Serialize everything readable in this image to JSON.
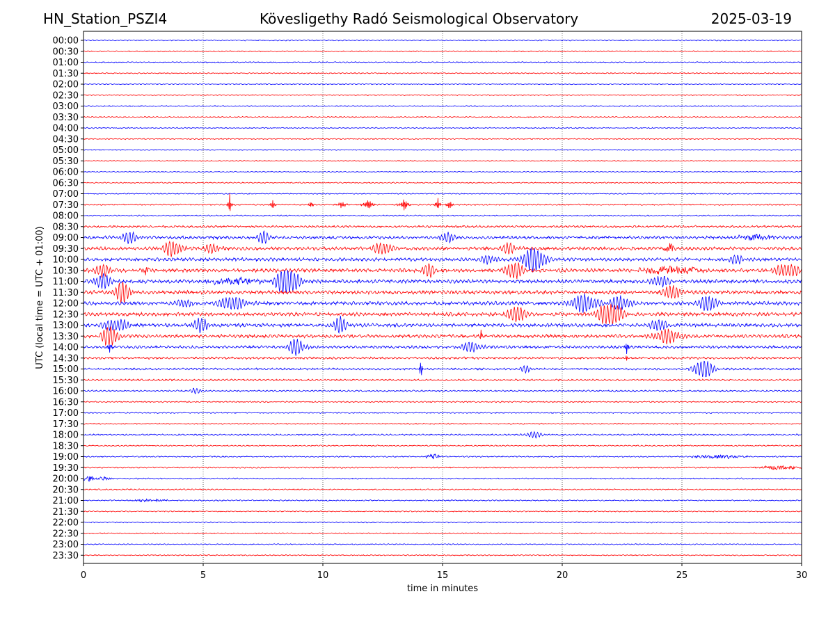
{
  "header": {
    "station": "HN_Station_PSZI4",
    "title": "Kövesligethy Radó Seismological Observatory",
    "date": "2025-03-19"
  },
  "chart_data": {
    "type": "line",
    "title": "Kövesligethy Radó Seismological Observatory",
    "xlabel": "time in minutes",
    "ylabel": "UTC (local time = UTC + 01:00)",
    "xlim": [
      0,
      30
    ],
    "xticks": [
      0,
      5,
      10,
      15,
      20,
      25,
      30
    ],
    "grid": "vertical dotted lines at each x tick",
    "row_labels": [
      "00:00",
      "00:30",
      "01:00",
      "01:30",
      "02:00",
      "02:30",
      "03:00",
      "03:30",
      "04:00",
      "04:30",
      "05:00",
      "05:30",
      "06:00",
      "06:30",
      "07:00",
      "07:30",
      "08:00",
      "08:30",
      "09:00",
      "09:30",
      "10:00",
      "10:30",
      "11:00",
      "11:30",
      "12:00",
      "12:30",
      "13:00",
      "13:30",
      "14:00",
      "14:30",
      "15:00",
      "15:30",
      "16:00",
      "16:30",
      "17:00",
      "17:30",
      "18:00",
      "18:30",
      "19:00",
      "19:30",
      "20:00",
      "20:30",
      "21:00",
      "21:30",
      "22:00",
      "22:30",
      "23:00",
      "23:30"
    ],
    "series_colors": [
      "#0000ff",
      "#ff0000"
    ],
    "color_rule": "alternating blue / red traces starting with blue at 00:00",
    "noise_level": [
      0.8,
      0.8,
      0.8,
      0.8,
      0.7,
      0.7,
      0.8,
      0.8,
      0.8,
      0.8,
      0.7,
      0.7,
      0.7,
      0.8,
      0.8,
      1.0,
      0.9,
      1.6,
      2.2,
      2.3,
      2.4,
      2.6,
      2.6,
      2.6,
      2.6,
      2.6,
      2.5,
      2.4,
      2.0,
      1.6,
      1.4,
      1.3,
      1.1,
      1.0,
      0.9,
      0.9,
      1.1,
      0.9,
      0.9,
      0.9,
      0.9,
      0.9,
      0.9,
      0.8,
      0.8,
      0.8,
      0.8,
      0.8
    ],
    "events": [
      {
        "row": 15,
        "t": 6.1,
        "amp": 22,
        "width": 0.18,
        "kind": "spike"
      },
      {
        "row": 15,
        "t": 7.9,
        "amp": 9,
        "width": 0.25,
        "kind": "spike"
      },
      {
        "row": 15,
        "t": 9.5,
        "amp": 7,
        "width": 0.3,
        "kind": "spike"
      },
      {
        "row": 15,
        "t": 10.8,
        "amp": 8,
        "width": 0.4,
        "kind": "spike"
      },
      {
        "row": 15,
        "t": 11.9,
        "amp": 10,
        "width": 0.5,
        "kind": "spike"
      },
      {
        "row": 15,
        "t": 13.4,
        "amp": 11,
        "width": 0.5,
        "kind": "spike"
      },
      {
        "row": 15,
        "t": 14.8,
        "amp": 12,
        "width": 0.3,
        "kind": "spike"
      },
      {
        "row": 15,
        "t": 15.3,
        "amp": 10,
        "width": 0.3,
        "kind": "spike"
      },
      {
        "row": 18,
        "t": 1.9,
        "amp": 7,
        "width": 0.6,
        "kind": "wave"
      },
      {
        "row": 18,
        "t": 7.5,
        "amp": 8,
        "width": 0.4,
        "kind": "wave"
      },
      {
        "row": 18,
        "t": 15.2,
        "amp": 7,
        "width": 0.4,
        "kind": "wave"
      },
      {
        "row": 18,
        "t": 28.0,
        "amp": 4,
        "width": 0.9,
        "kind": "burst"
      },
      {
        "row": 19,
        "t": 3.7,
        "amp": 10,
        "width": 0.6,
        "kind": "wave"
      },
      {
        "row": 19,
        "t": 5.4,
        "amp": 6,
        "width": 0.5,
        "kind": "wave"
      },
      {
        "row": 19,
        "t": 12.5,
        "amp": 8,
        "width": 0.6,
        "kind": "wave"
      },
      {
        "row": 19,
        "t": 17.8,
        "amp": 7,
        "width": 0.5,
        "kind": "wave"
      },
      {
        "row": 19,
        "t": 24.5,
        "amp": 8,
        "width": 0.25,
        "kind": "burst"
      },
      {
        "row": 20,
        "t": 18.8,
        "amp": 16,
        "width": 0.7,
        "kind": "wave"
      },
      {
        "row": 20,
        "t": 16.9,
        "amp": 6,
        "width": 0.5,
        "kind": "wave"
      },
      {
        "row": 20,
        "t": 27.3,
        "amp": 5,
        "width": 0.6,
        "kind": "wave"
      },
      {
        "row": 21,
        "t": 0.8,
        "amp": 8,
        "width": 0.6,
        "kind": "wave"
      },
      {
        "row": 21,
        "t": 2.6,
        "amp": 5,
        "width": 0.3,
        "kind": "burst"
      },
      {
        "row": 21,
        "t": 14.4,
        "amp": 9,
        "width": 0.4,
        "kind": "wave"
      },
      {
        "row": 21,
        "t": 18.0,
        "amp": 12,
        "width": 0.5,
        "kind": "wave"
      },
      {
        "row": 21,
        "t": 24.5,
        "amp": 7,
        "width": 1.4,
        "kind": "burst"
      },
      {
        "row": 21,
        "t": 29.4,
        "amp": 8,
        "width": 0.8,
        "kind": "wave"
      },
      {
        "row": 22,
        "t": 0.8,
        "amp": 10,
        "width": 0.5,
        "kind": "wave"
      },
      {
        "row": 22,
        "t": 6.3,
        "amp": 5,
        "width": 1.4,
        "kind": "burst"
      },
      {
        "row": 22,
        "t": 8.5,
        "amp": 18,
        "width": 0.7,
        "kind": "wave"
      },
      {
        "row": 22,
        "t": 24.1,
        "amp": 8,
        "width": 0.5,
        "kind": "wave"
      },
      {
        "row": 23,
        "t": 1.6,
        "amp": 14,
        "width": 0.5,
        "kind": "wave"
      },
      {
        "row": 23,
        "t": 24.6,
        "amp": 10,
        "width": 0.5,
        "kind": "wave"
      },
      {
        "row": 24,
        "t": 6.2,
        "amp": 9,
        "width": 0.8,
        "kind": "wave"
      },
      {
        "row": 24,
        "t": 4.2,
        "amp": 6,
        "width": 0.4,
        "kind": "wave"
      },
      {
        "row": 24,
        "t": 20.9,
        "amp": 12,
        "width": 0.8,
        "kind": "wave"
      },
      {
        "row": 24,
        "t": 22.4,
        "amp": 10,
        "width": 0.6,
        "kind": "wave"
      },
      {
        "row": 24,
        "t": 26.1,
        "amp": 12,
        "width": 0.5,
        "kind": "wave"
      },
      {
        "row": 25,
        "t": 18.1,
        "amp": 12,
        "width": 0.5,
        "kind": "wave"
      },
      {
        "row": 25,
        "t": 22.0,
        "amp": 15,
        "width": 0.8,
        "kind": "wave"
      },
      {
        "row": 26,
        "t": 1.4,
        "amp": 8,
        "width": 0.8,
        "kind": "wave"
      },
      {
        "row": 26,
        "t": 4.9,
        "amp": 9,
        "width": 0.5,
        "kind": "wave"
      },
      {
        "row": 26,
        "t": 10.7,
        "amp": 11,
        "width": 0.4,
        "kind": "wave"
      },
      {
        "row": 26,
        "t": 24.0,
        "amp": 8,
        "width": 0.5,
        "kind": "wave"
      },
      {
        "row": 27,
        "t": 1.1,
        "amp": 14,
        "width": 0.5,
        "kind": "wave"
      },
      {
        "row": 27,
        "t": 16.6,
        "amp": 12,
        "width": 0.15,
        "kind": "spike"
      },
      {
        "row": 27,
        "t": 24.4,
        "amp": 9,
        "width": 0.8,
        "kind": "wave"
      },
      {
        "row": 28,
        "t": 1.1,
        "amp": 8,
        "width": 0.3,
        "kind": "spike"
      },
      {
        "row": 28,
        "t": 8.9,
        "amp": 11,
        "width": 0.5,
        "kind": "wave"
      },
      {
        "row": 28,
        "t": 16.2,
        "amp": 7,
        "width": 0.6,
        "kind": "wave"
      },
      {
        "row": 28,
        "t": 22.7,
        "amp": 14,
        "width": 0.2,
        "kind": "spike"
      },
      {
        "row": 29,
        "t": 22.7,
        "amp": 8,
        "width": 0.2,
        "kind": "spike"
      },
      {
        "row": 30,
        "t": 14.1,
        "amp": 30,
        "width": 0.12,
        "kind": "spike"
      },
      {
        "row": 30,
        "t": 25.9,
        "amp": 12,
        "width": 0.6,
        "kind": "wave"
      },
      {
        "row": 30,
        "t": 18.5,
        "amp": 5,
        "width": 0.3,
        "kind": "wave"
      },
      {
        "row": 32,
        "t": 4.7,
        "amp": 4,
        "width": 0.3,
        "kind": "wave"
      },
      {
        "row": 36,
        "t": 18.8,
        "amp": 5,
        "width": 0.4,
        "kind": "wave"
      },
      {
        "row": 38,
        "t": 14.6,
        "amp": 5,
        "width": 0.3,
        "kind": "burst"
      },
      {
        "row": 38,
        "t": 26.6,
        "amp": 3,
        "width": 1.2,
        "kind": "burst"
      },
      {
        "row": 39,
        "t": 29.0,
        "amp": 3,
        "width": 1.0,
        "kind": "burst"
      },
      {
        "row": 40,
        "t": 0.2,
        "amp": 4,
        "width": 0.3,
        "kind": "burst"
      },
      {
        "row": 40,
        "t": 0.9,
        "amp": 3,
        "width": 0.4,
        "kind": "burst"
      },
      {
        "row": 42,
        "t": 2.8,
        "amp": 2,
        "width": 1.0,
        "kind": "burst"
      }
    ]
  }
}
